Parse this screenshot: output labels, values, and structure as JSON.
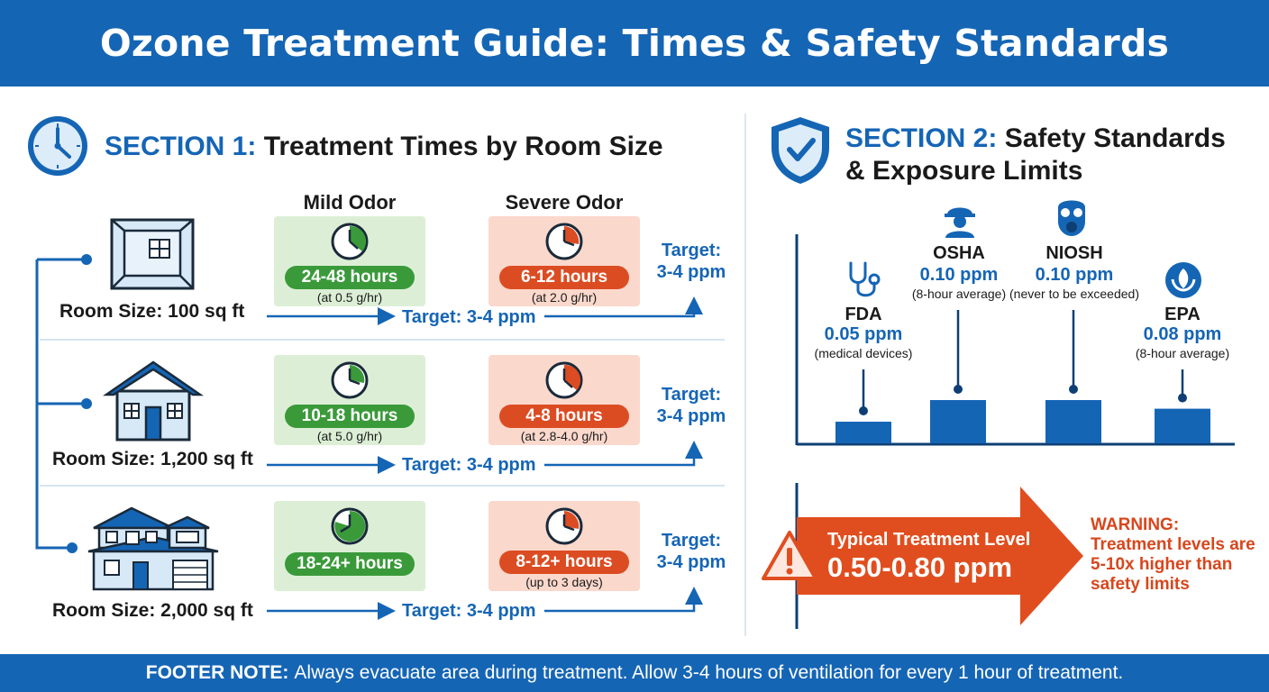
{
  "header": {
    "title": "Ozone Treatment Guide: Times & Safety Standards"
  },
  "section1": {
    "lead": "SECTION 1:",
    "title": "Treatment Times by Room Size",
    "mild_header": "Mild Odor",
    "severe_header": "Severe Odor",
    "rows": [
      {
        "room": "Room Size: 100 sq ft",
        "mild_time": "24-48 hours",
        "mild_rate": "(at 0.5 g/hr)",
        "severe_time": "6-12 hours",
        "severe_rate": "(at 2.0 g/hr)",
        "target_right_1": "Target:",
        "target_right_2": "3-4 ppm",
        "target_mid": "Target: 3-4 ppm"
      },
      {
        "room": "Room Size: 1,200 sq ft",
        "mild_time": "10-18 hours",
        "mild_rate": "(at 5.0 g/hr)",
        "severe_time": "4-8 hours",
        "severe_rate": "(at 2.8-4.0 g/hr)",
        "target_right_1": "Target:",
        "target_right_2": "3-4 ppm",
        "target_mid": "Target: 3-4 ppm"
      },
      {
        "room": "Room Size: 2,000 sq ft",
        "mild_time": "18-24+ hours",
        "mild_rate": "",
        "severe_time": "8-12+ hours",
        "severe_rate": "(up to 3 days)",
        "target_right_1": "Target:",
        "target_right_2": "3-4 ppm",
        "target_mid": "Target: 3-4 ppm"
      }
    ]
  },
  "section2": {
    "lead": "SECTION 2:",
    "title_line1": "Safety Standards",
    "title_line2": "& Exposure Limits",
    "standards": [
      {
        "name": "FDA",
        "value": "0.05 ppm",
        "note": "(medical devices)",
        "ppm": 0.05
      },
      {
        "name": "OSHA",
        "value": "0.10 ppm",
        "note": "(8-hour average)",
        "ppm": 0.1
      },
      {
        "name": "NIOSH",
        "value": "0.10 ppm",
        "note": "(never to be exceeded)",
        "ppm": 0.1
      },
      {
        "name": "EPA",
        "value": "0.08 ppm",
        "note": "(8-hour average)",
        "ppm": 0.08
      }
    ],
    "treatment_label": "Typical Treatment Level",
    "treatment_value": "0.50-0.80 ppm",
    "warning": "WARNING: Treatment levels are 5-10x higher than safety limits"
  },
  "footer": {
    "label": "FOOTER NOTE:",
    "text": "Always evacuate area during treatment. Allow 3-4 hours of ventilation for every 1 hour of treatment."
  },
  "colors": {
    "brand_blue": "#1565b5",
    "mild_green": "#3a9a3a",
    "severe_red": "#dc4c22",
    "warning_orange": "#e04e1f"
  },
  "icons": [
    "clock-icon",
    "shield-check-icon",
    "room-icon",
    "house-icon",
    "large-house-icon",
    "stethoscope-icon",
    "worker-icon",
    "gas-mask-icon",
    "leaf-icon",
    "warning-icon"
  ]
}
